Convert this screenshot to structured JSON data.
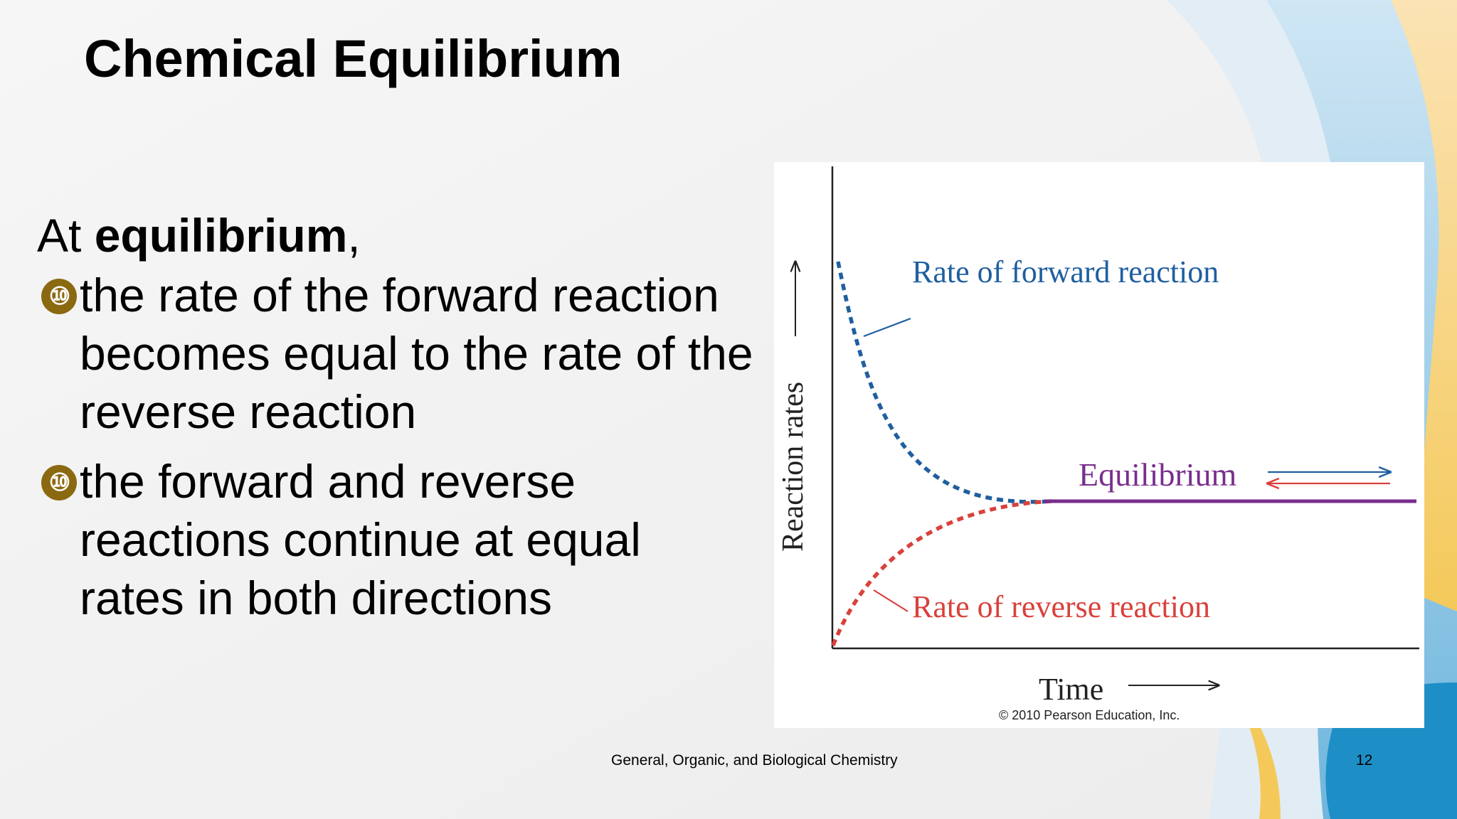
{
  "slide": {
    "title": "Chemical Equilibrium",
    "intro": {
      "prefix": "At ",
      "bold": "equilibrium",
      "suffix": ","
    },
    "bullet_glyph": "⑩",
    "bullets": [
      "the rate of the forward reaction becomes equal to the rate of the reverse reaction",
      "the forward and reverse reactions continue at equal rates in both directions"
    ],
    "footer": {
      "course": "General, Organic, and Biological Chemistry",
      "page": "12"
    }
  },
  "colors": {
    "forward": "#1f5fa0",
    "reverse": "#d9413c",
    "equilibrium": "#7a2e8e"
  },
  "figure": {
    "ylabel": "Reaction rates",
    "xlabel": "Time",
    "labels": {
      "forward": "Rate of forward reaction",
      "reverse": "Rate of reverse reaction",
      "equilibrium": "Equilibrium"
    },
    "credit": "© 2010 Pearson Education, Inc."
  }
}
